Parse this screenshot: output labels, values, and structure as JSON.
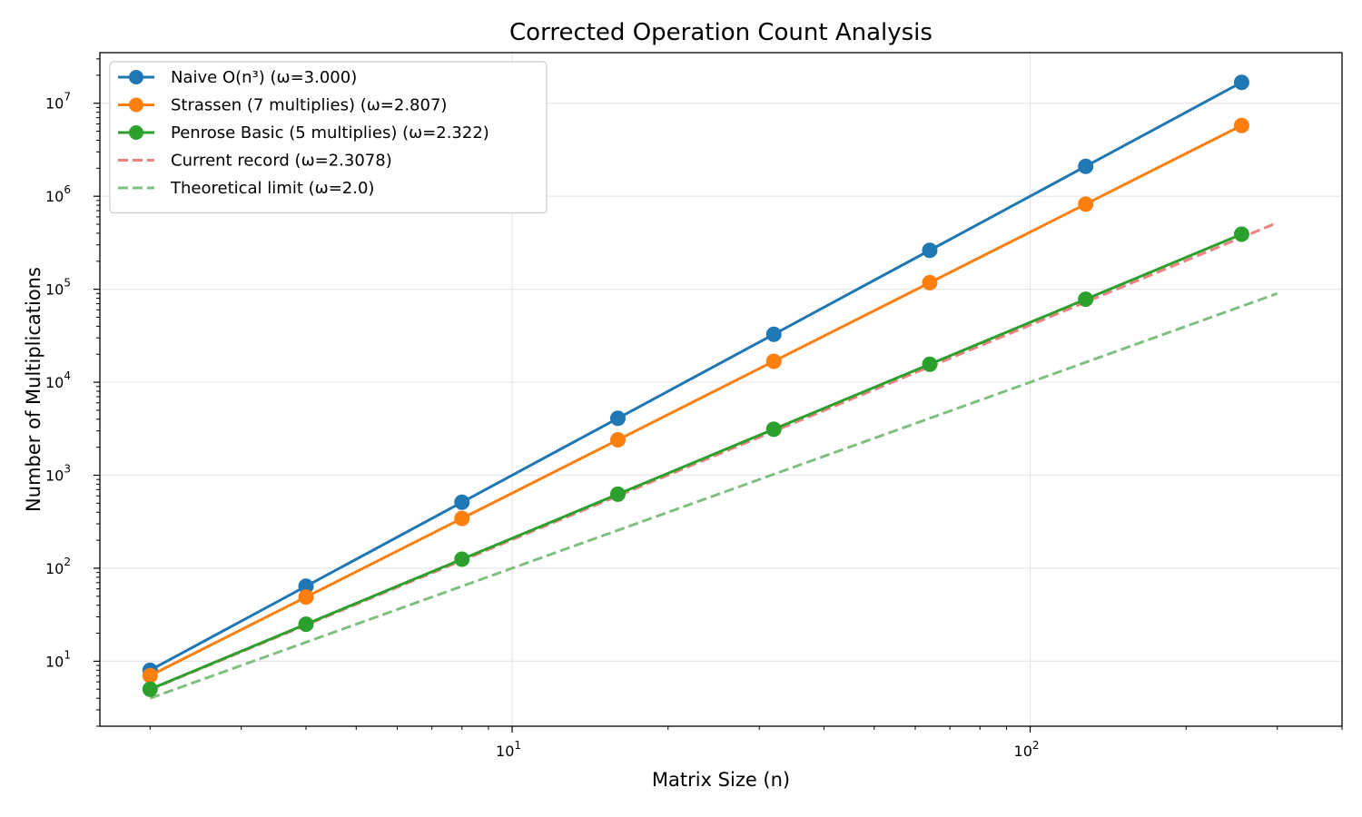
{
  "chart_data": {
    "type": "line",
    "title": "Corrected Operation Count Analysis",
    "xlabel": "Matrix Size (n)",
    "ylabel": "Number of Multiplications",
    "xscale": "log",
    "yscale": "log",
    "xlim": [
      1.6,
      400
    ],
    "ylim": [
      2,
      35000000
    ],
    "grid": true,
    "legend_position": "top-left",
    "x_ticks": [
      {
        "value": 10,
        "base": "10",
        "exp": "1"
      },
      {
        "value": 100,
        "base": "10",
        "exp": "2"
      }
    ],
    "y_ticks": [
      {
        "value": 10,
        "base": "10",
        "exp": "1"
      },
      {
        "value": 100,
        "base": "10",
        "exp": "2"
      },
      {
        "value": 1000,
        "base": "10",
        "exp": "3"
      },
      {
        "value": 10000,
        "base": "10",
        "exp": "4"
      },
      {
        "value": 100000,
        "base": "10",
        "exp": "5"
      },
      {
        "value": 1000000,
        "base": "10",
        "exp": "6"
      },
      {
        "value": 10000000,
        "base": "10",
        "exp": "7"
      }
    ],
    "series": [
      {
        "name": "Naive O(n³) (ω=3.000)",
        "color": "#1f77b4",
        "style": "solid",
        "markers": true,
        "x": [
          2,
          4,
          8,
          16,
          32,
          64,
          128,
          256
        ],
        "y": [
          8,
          64,
          512,
          4096,
          32768,
          262144,
          2097152,
          16777216
        ]
      },
      {
        "name": "Strassen (7 multiplies) (ω=2.807)",
        "color": "#ff7f0e",
        "style": "solid",
        "markers": true,
        "x": [
          2,
          4,
          8,
          16,
          32,
          64,
          128,
          256
        ],
        "y": [
          7,
          49,
          343,
          2401,
          16807,
          117649,
          823543,
          5764801
        ]
      },
      {
        "name": "Penrose Basic (5 multiplies) (ω=2.322)",
        "color": "#2ca02c",
        "style": "solid",
        "markers": true,
        "x": [
          2,
          4,
          8,
          16,
          32,
          64,
          128,
          256
        ],
        "y": [
          5,
          25,
          125,
          625,
          3125,
          15625,
          78125,
          390625
        ]
      },
      {
        "name": "Current record (ω=2.3078)",
        "color": "#f08080",
        "style": "dashed",
        "markers": false,
        "x": [
          2,
          4,
          8,
          16,
          32,
          64,
          128,
          256,
          300
        ],
        "y": [
          4.95,
          24.5,
          121,
          600,
          2970,
          14700,
          72800,
          360000,
          520000
        ]
      },
      {
        "name": "Theoretical limit (ω=2.0)",
        "color": "#7fbf7f",
        "style": "dashed",
        "markers": false,
        "x": [
          2,
          300
        ],
        "y": [
          4,
          90000
        ]
      }
    ]
  }
}
